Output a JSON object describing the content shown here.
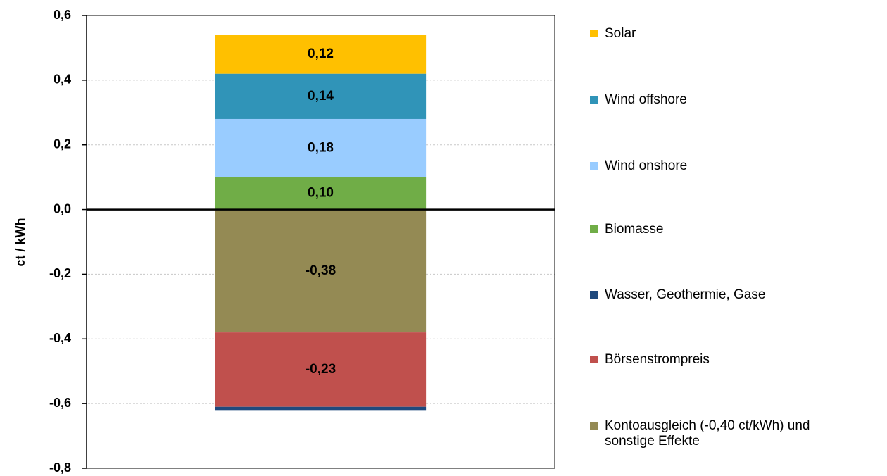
{
  "chart_data": {
    "type": "stacked_bar",
    "y_label": "ct / kWh",
    "categories": [
      null
    ],
    "ylim": [
      -0.8,
      0.6
    ],
    "yticks": [
      {
        "value": 0.6,
        "label": "0,6"
      },
      {
        "value": 0.4,
        "label": "0,4"
      },
      {
        "value": 0.2,
        "label": "0,2"
      },
      {
        "value": 0,
        "label": "0,0"
      },
      {
        "value": -0.2,
        "label": "-0,2"
      },
      {
        "value": -0.4,
        "label": "-0,4"
      },
      {
        "value": -0.6,
        "label": "-0,6"
      },
      {
        "value": -0.8,
        "label": "-0,8"
      }
    ],
    "grid": true,
    "legend": "right",
    "series": [
      {
        "name": "Solar",
        "color": "#ffc000",
        "values": [
          0.12
        ],
        "value_labels": [
          "0,12"
        ]
      },
      {
        "name": "Wind offshore",
        "color": "#3094b8",
        "values": [
          0.14
        ],
        "value_labels": [
          "0,14"
        ]
      },
      {
        "name": "Wind onshore",
        "color": "#99ccff",
        "values": [
          0.18
        ],
        "value_labels": [
          "0,18"
        ]
      },
      {
        "name": "Biomasse",
        "color": "#70ad47",
        "values": [
          0.1
        ],
        "value_labels": [
          "0,10"
        ]
      },
      {
        "name": "Wasser, Geothermie, Gase",
        "color": "#1f497d",
        "values": [
          -0.01
        ]
      },
      {
        "name": "Börsenstrompreis",
        "color": "#c0504d",
        "values": [
          -0.23
        ],
        "value_labels": [
          "-0,23"
        ]
      },
      {
        "name": "Kontoausgleich (-0,40 ct/kWh) und sonstige Effekte",
        "color": "#948a54",
        "values": [
          -0.38
        ],
        "value_labels": [
          "-0,38"
        ]
      }
    ]
  }
}
